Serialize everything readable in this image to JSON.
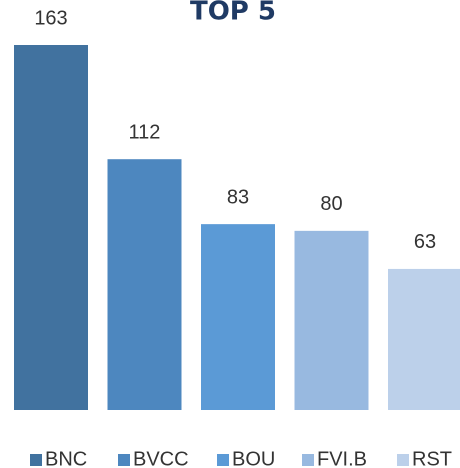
{
  "chart_data": {
    "type": "bar",
    "title": "TOP 5",
    "categories": [
      "BNC",
      "BVCC",
      "BOU",
      "FVI.B",
      "RST"
    ],
    "values": [
      163,
      112,
      83,
      80,
      63
    ],
    "colors": [
      "#41729f",
      "#4d87bf",
      "#5b9ad6",
      "#98b9e0",
      "#bcd0ea"
    ]
  }
}
